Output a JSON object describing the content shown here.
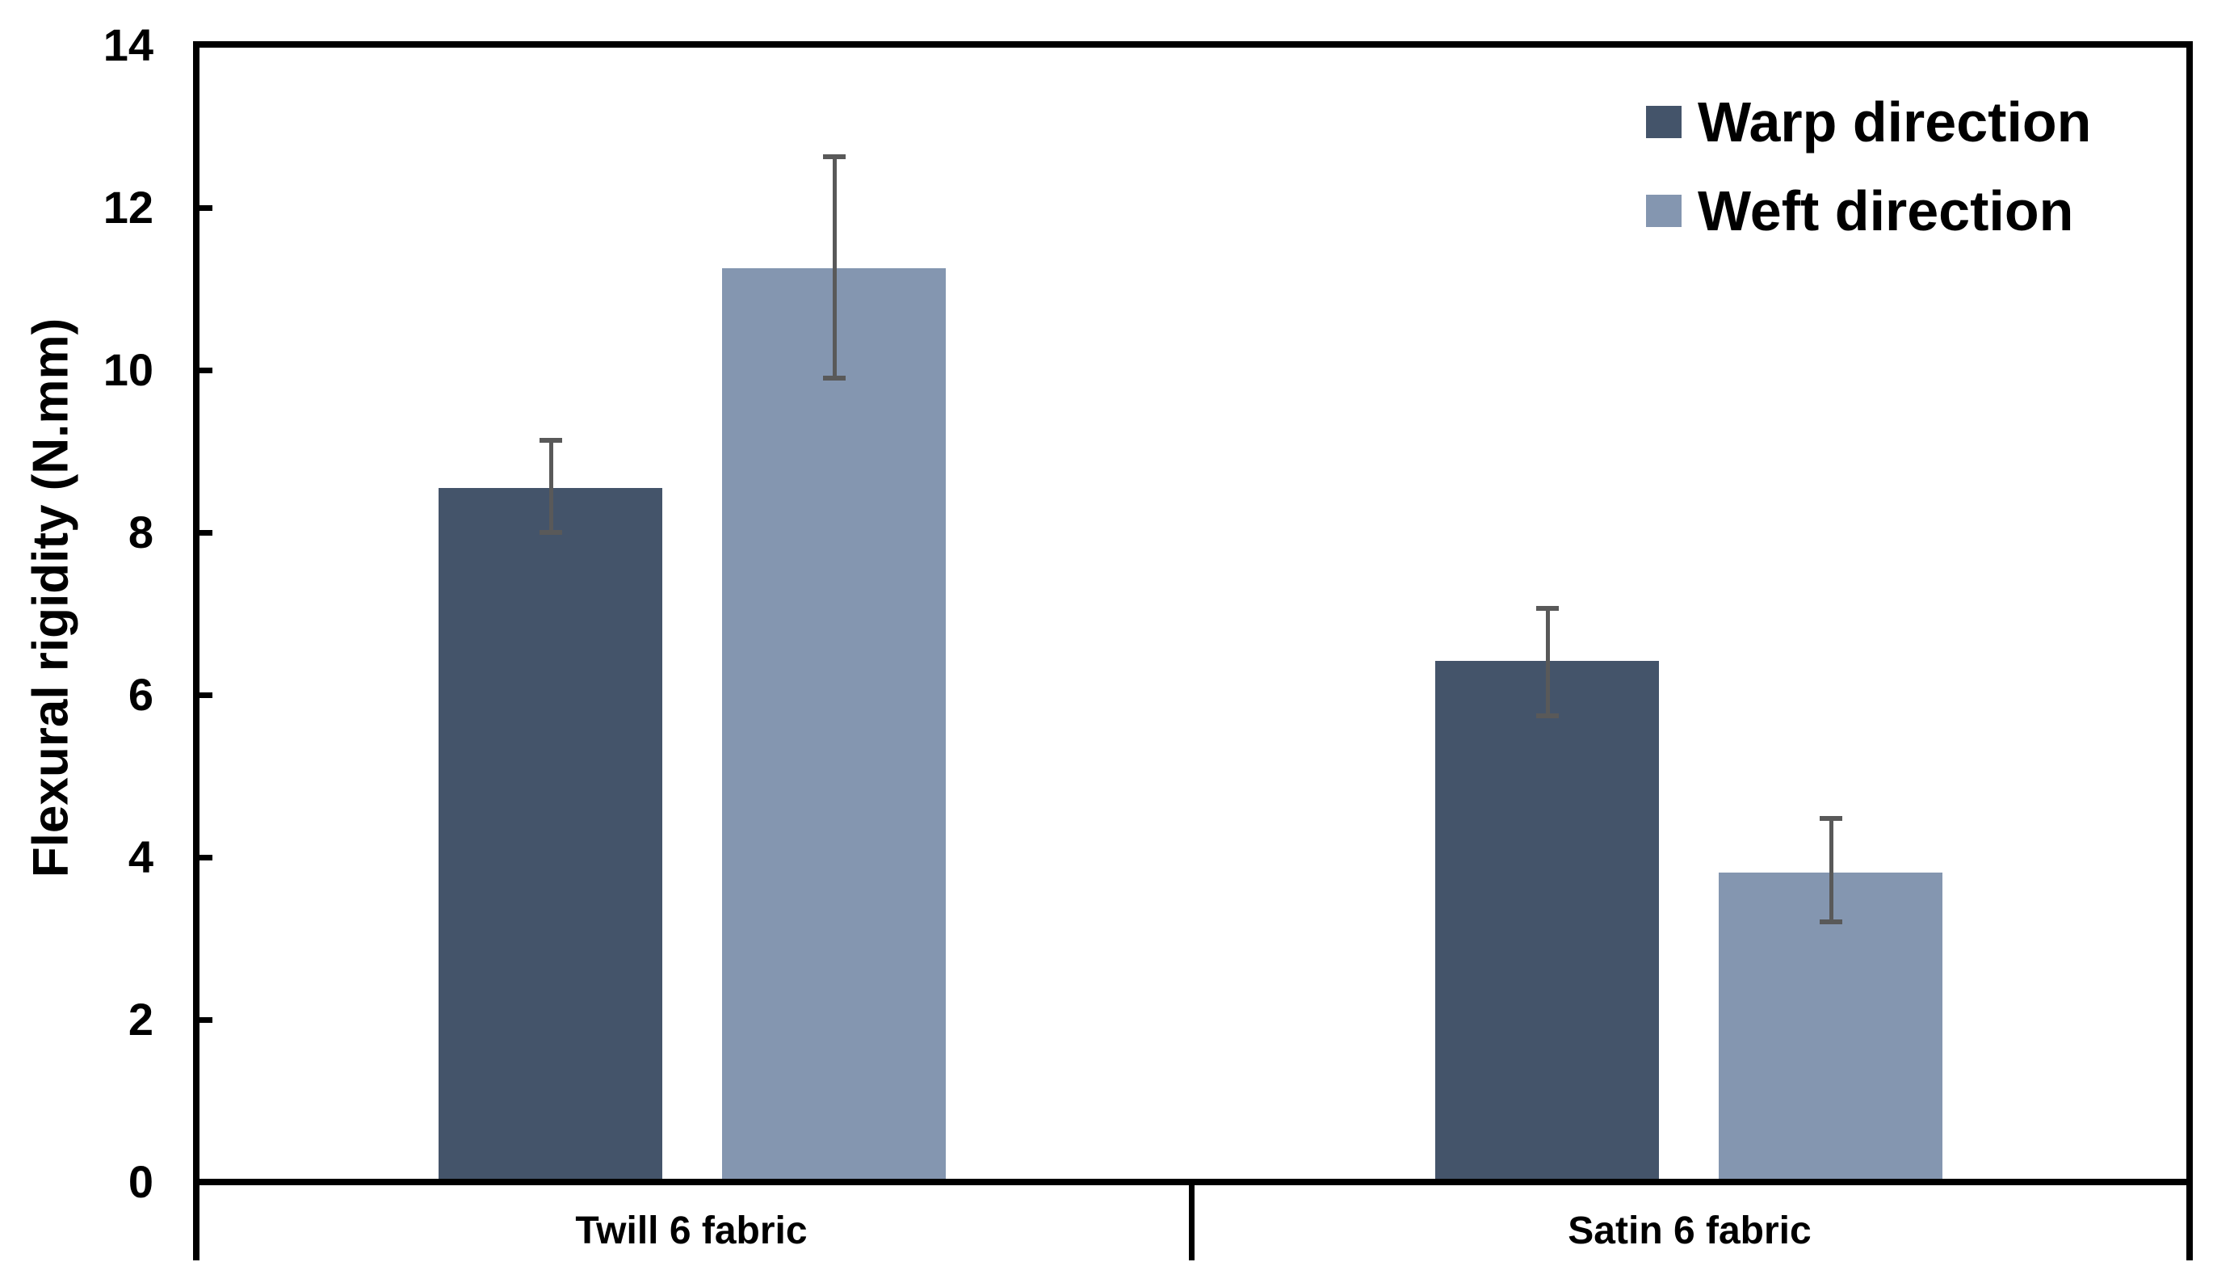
{
  "chart_data": {
    "type": "bar",
    "title": "",
    "xlabel": "",
    "ylabel": "Flexural rigidity (N.mm)",
    "ylim": [
      0,
      14
    ],
    "yticks": [
      0,
      2,
      4,
      6,
      8,
      10,
      12,
      14
    ],
    "grid": false,
    "legend_position": "top-right",
    "background_color": "#ffffff",
    "axis_color": "#000000",
    "error_bar_color": "#595959",
    "categories": [
      "Twill 6 fabric",
      "Satin 6 fabric"
    ],
    "series": [
      {
        "name": "Warp direction",
        "color": "#44546A",
        "values": [
          8.55,
          6.42
        ],
        "error_high": [
          9.13,
          7.06
        ],
        "error_low": [
          8.0,
          5.74
        ]
      },
      {
        "name": "Weft direction",
        "color": "#8496B0",
        "values": [
          11.25,
          3.81
        ],
        "error_high": [
          12.63,
          4.48
        ],
        "error_low": [
          9.9,
          3.2
        ]
      }
    ]
  }
}
